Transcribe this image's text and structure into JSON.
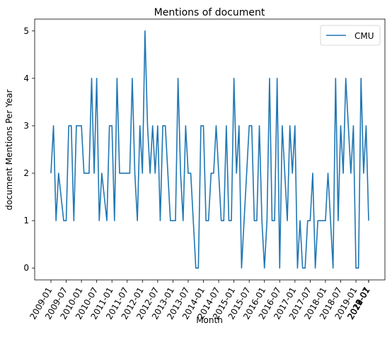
{
  "chart_data": {
    "type": "line",
    "title": "Mentions of document",
    "xlabel": "Month",
    "ylabel": "document Mentions Per Year",
    "ylim": [
      -0.25,
      5.25
    ],
    "y_ticks": [
      0,
      1,
      2,
      3,
      4,
      5
    ],
    "x_tick_labels": [
      "2009-01",
      "2009-07",
      "2010-01",
      "2010-07",
      "2011-01",
      "2011-07",
      "2012-01",
      "2012-07",
      "2013-01",
      "2013-07",
      "2014-01",
      "2014-07",
      "2015-01",
      "2015-07",
      "2016-01",
      "2016-07",
      "2017-01",
      "2017-07",
      "2018-01",
      "2018-07",
      "2019-01",
      "2019-07",
      "2020-01",
      "2020-07",
      "2021-01",
      "2021-07",
      "2022-01",
      "2022-07",
      "2023-01"
    ],
    "legend": {
      "position": "top-right"
    },
    "series": [
      {
        "name": "CMU",
        "color": "#1f77b4",
        "values": [
          2,
          3,
          1,
          2,
          1.5,
          1,
          1,
          3,
          3,
          1,
          3,
          3,
          3,
          2,
          2,
          2,
          4,
          2,
          4,
          1,
          2,
          1.5,
          1,
          3,
          3,
          1,
          4,
          2,
          2,
          2,
          2,
          2,
          4,
          2,
          1,
          3,
          2,
          5,
          3,
          2,
          3,
          2,
          3,
          1,
          3,
          3,
          2,
          1,
          1,
          1,
          4,
          2,
          1,
          3,
          2,
          2,
          1,
          0,
          0,
          3,
          3,
          1,
          1,
          2,
          2,
          3,
          2,
          1,
          1,
          3,
          1,
          1,
          4,
          2,
          3,
          0,
          1,
          2,
          3,
          3,
          1,
          1,
          3,
          1,
          0,
          1,
          4,
          1,
          1,
          4,
          0,
          3,
          2,
          1,
          3,
          2,
          3,
          0,
          1,
          0,
          0,
          1,
          1,
          2,
          0,
          1,
          1,
          1,
          1,
          2,
          1,
          0,
          4,
          1,
          3,
          2,
          4,
          3,
          2,
          3,
          0,
          0,
          4,
          2,
          3,
          1
        ]
      }
    ]
  }
}
